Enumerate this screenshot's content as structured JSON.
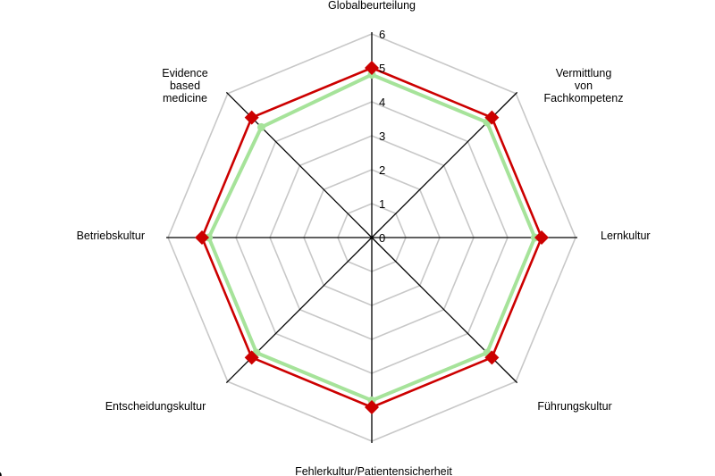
{
  "chart_data": {
    "type": "radar",
    "title": "",
    "categories": [
      "Globalbeurteilung",
      "Vermittlung von Fachkompetenz",
      "Lernkultur",
      "Führungskultur",
      "Fehlerkultur/Patientensicherheit",
      "Entscheidungskultur",
      "Betriebskultur",
      "Evidence based medicine"
    ],
    "category_lines": [
      [
        "Globalbeurteilung"
      ],
      [
        "Vermittlung",
        "von",
        "Fachkompetenz"
      ],
      [
        "Lernkultur"
      ],
      [
        "Führungskultur"
      ],
      [
        "Fehlerkultur/Patientensicherheit"
      ],
      [
        "Entscheidungskultur"
      ],
      [
        "Betriebskultur"
      ],
      [
        "Evidence",
        "based",
        "medicine"
      ]
    ],
    "rlim": [
      0,
      6
    ],
    "ticks": [
      "0",
      "1",
      "2",
      "3",
      "4",
      "5",
      "6"
    ],
    "grid": true,
    "legend": "none",
    "series": [
      {
        "color": "#cc0000",
        "marker": "diamond",
        "values": [
          5.0,
          5.0,
          5.0,
          5.0,
          5.0,
          5.0,
          5.0,
          5.0
        ]
      },
      {
        "color": "#a6e39a",
        "marker": "circle",
        "values": [
          4.8,
          4.8,
          4.8,
          4.8,
          4.8,
          4.8,
          4.8,
          4.6
        ]
      }
    ]
  },
  "corner_fragment": "a"
}
